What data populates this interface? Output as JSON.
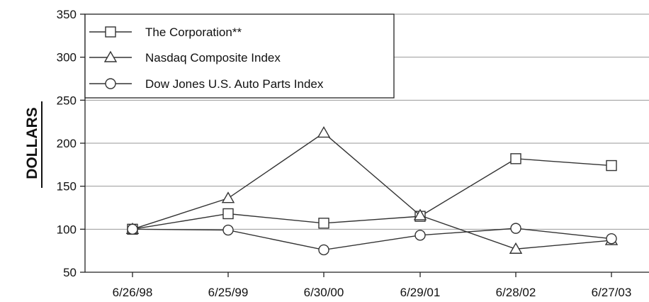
{
  "chart_data": {
    "type": "line",
    "title": "",
    "xlabel": "",
    "ylabel": "DOLLARS",
    "categories": [
      "6/26/98",
      "6/25/99",
      "6/30/00",
      "6/29/01",
      "6/28/02",
      "6/27/03"
    ],
    "ylim": [
      50,
      350
    ],
    "yticks": [
      50,
      100,
      150,
      200,
      250,
      300,
      350
    ],
    "grid": true,
    "legend_position": "top-left",
    "series": [
      {
        "name": "The Corporation**",
        "marker": "square",
        "values": [
          100,
          118,
          107,
          115,
          182,
          174
        ]
      },
      {
        "name": "Nasdaq Composite Index",
        "marker": "triangle",
        "values": [
          100,
          136,
          212,
          116,
          77,
          87
        ]
      },
      {
        "name": "Dow Jones U.S. Auto Parts Index",
        "marker": "circle",
        "values": [
          100,
          99,
          76,
          93,
          101,
          89
        ]
      }
    ]
  }
}
